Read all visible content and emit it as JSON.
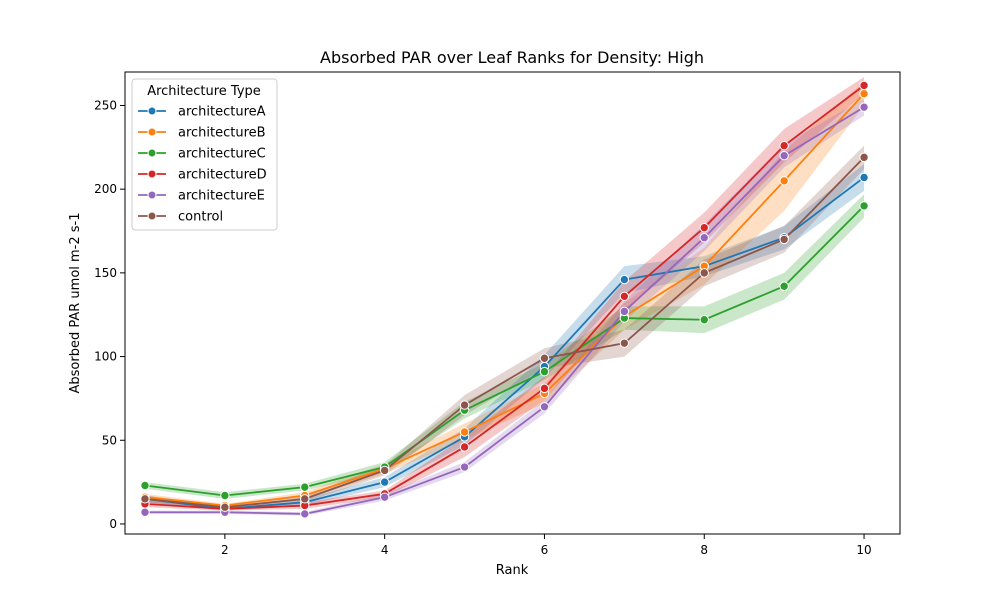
{
  "chart_data": {
    "type": "line",
    "title": "Absorbed PAR over Leaf Ranks for Density: High",
    "xlabel": "Rank",
    "ylabel": "Absorbed PAR umol m-2 s-1",
    "xlim": [
      0.75,
      10.45
    ],
    "ylim": [
      -6,
      270
    ],
    "xticks": [
      2,
      4,
      6,
      8,
      10
    ],
    "yticks": [
      0,
      50,
      100,
      150,
      200,
      250
    ],
    "grid": false,
    "legend": {
      "title": "Architecture Type",
      "placement": "top-left"
    },
    "x": [
      1,
      2,
      3,
      4,
      5,
      6,
      7,
      8,
      9,
      10
    ],
    "series": [
      {
        "name": "architectureA",
        "color": "#1f77b4",
        "values": [
          15,
          9,
          13,
          25,
          52,
          94,
          146,
          154,
          171,
          207
        ],
        "lower": [
          13,
          8,
          11,
          22,
          47,
          87,
          138,
          148,
          164,
          199
        ],
        "upper": [
          17,
          10,
          15,
          28,
          57,
          101,
          154,
          160,
          178,
          215
        ]
      },
      {
        "name": "architectureB",
        "color": "#ff7f0e",
        "values": [
          16,
          11,
          17,
          33,
          55,
          78,
          124,
          154,
          205,
          257
        ],
        "lower": [
          14,
          10,
          15,
          30,
          50,
          72,
          116,
          143,
          187,
          250
        ],
        "upper": [
          18,
          12,
          19,
          36,
          60,
          84,
          132,
          165,
          223,
          264
        ]
      },
      {
        "name": "architectureC",
        "color": "#2ca02c",
        "values": [
          23,
          17,
          22,
          34,
          68,
          91,
          123,
          122,
          142,
          190
        ],
        "lower": [
          21,
          15,
          20,
          31,
          63,
          86,
          116,
          114,
          134,
          183
        ],
        "upper": [
          25,
          19,
          24,
          37,
          73,
          96,
          130,
          130,
          150,
          197
        ]
      },
      {
        "name": "architectureD",
        "color": "#d62728",
        "values": [
          12,
          9,
          11,
          18,
          46,
          81,
          136,
          177,
          226,
          262
        ],
        "lower": [
          10,
          8,
          9,
          16,
          40,
          74,
          127,
          168,
          216,
          257
        ],
        "upper": [
          14,
          10,
          13,
          20,
          52,
          88,
          145,
          186,
          236,
          267
        ]
      },
      {
        "name": "architectureE",
        "color": "#9467bd",
        "values": [
          7,
          7,
          6,
          16,
          34,
          70,
          127,
          171,
          220,
          249
        ],
        "lower": [
          6,
          6,
          5,
          14,
          31,
          66,
          121,
          163,
          213,
          244
        ],
        "upper": [
          8,
          8,
          7,
          18,
          37,
          74,
          133,
          179,
          227,
          254
        ]
      },
      {
        "name": "control",
        "color": "#8c564b",
        "values": [
          15,
          10,
          15,
          32,
          71,
          99,
          108,
          150,
          170,
          219
        ],
        "lower": [
          13,
          9,
          13,
          29,
          65,
          93,
          100,
          142,
          162,
          212
        ],
        "upper": [
          17,
          11,
          17,
          35,
          77,
          105,
          116,
          158,
          178,
          226
        ]
      }
    ]
  }
}
